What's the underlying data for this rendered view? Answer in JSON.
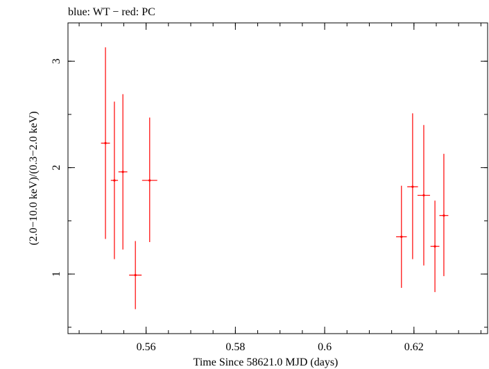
{
  "chart_data": {
    "type": "scatter",
    "title": "blue: WT − red: PC",
    "xlabel": "Time Since 58621.0 MJD (days)",
    "ylabel": "(2.0−10.0 keV)/(0.3−2.0 keV)",
    "xlim": [
      0.5425,
      0.6365
    ],
    "ylim": [
      0.44,
      3.36
    ],
    "x_ticks": [
      {
        "value": 0.56,
        "label": "0.56"
      },
      {
        "value": 0.58,
        "label": "0.58"
      },
      {
        "value": 0.6,
        "label": "0.6"
      },
      {
        "value": 0.62,
        "label": "0.62"
      }
    ],
    "y_ticks": [
      {
        "value": 1,
        "label": "1"
      },
      {
        "value": 2,
        "label": "2"
      },
      {
        "value": 3,
        "label": "3"
      }
    ],
    "x_minor_step": 0.005,
    "y_minor_step": 0.5,
    "grid": false,
    "series": [
      {
        "color": "#ff0000",
        "points": [
          {
            "x": 0.5509,
            "xerr": 0.001,
            "y": 2.23,
            "ylo": 1.33,
            "yhi": 3.13
          },
          {
            "x": 0.5529,
            "xerr": 0.0008,
            "y": 1.88,
            "ylo": 1.14,
            "yhi": 2.62
          },
          {
            "x": 0.5548,
            "xerr": 0.001,
            "y": 1.96,
            "ylo": 1.23,
            "yhi": 2.69
          },
          {
            "x": 0.5576,
            "xerr": 0.0014,
            "y": 0.99,
            "ylo": 0.67,
            "yhi": 1.31
          },
          {
            "x": 0.5608,
            "xerr": 0.0017,
            "y": 1.88,
            "ylo": 1.3,
            "yhi": 2.47
          },
          {
            "x": 0.6172,
            "xerr": 0.0012,
            "y": 1.35,
            "ylo": 0.87,
            "yhi": 1.83
          },
          {
            "x": 0.6197,
            "xerr": 0.0012,
            "y": 1.82,
            "ylo": 1.14,
            "yhi": 2.51
          },
          {
            "x": 0.6222,
            "xerr": 0.0014,
            "y": 1.74,
            "ylo": 1.08,
            "yhi": 2.4
          },
          {
            "x": 0.6247,
            "xerr": 0.001,
            "y": 1.26,
            "ylo": 0.83,
            "yhi": 1.69
          },
          {
            "x": 0.6267,
            "xerr": 0.001,
            "y": 1.55,
            "ylo": 0.98,
            "yhi": 2.13
          }
        ]
      }
    ]
  }
}
